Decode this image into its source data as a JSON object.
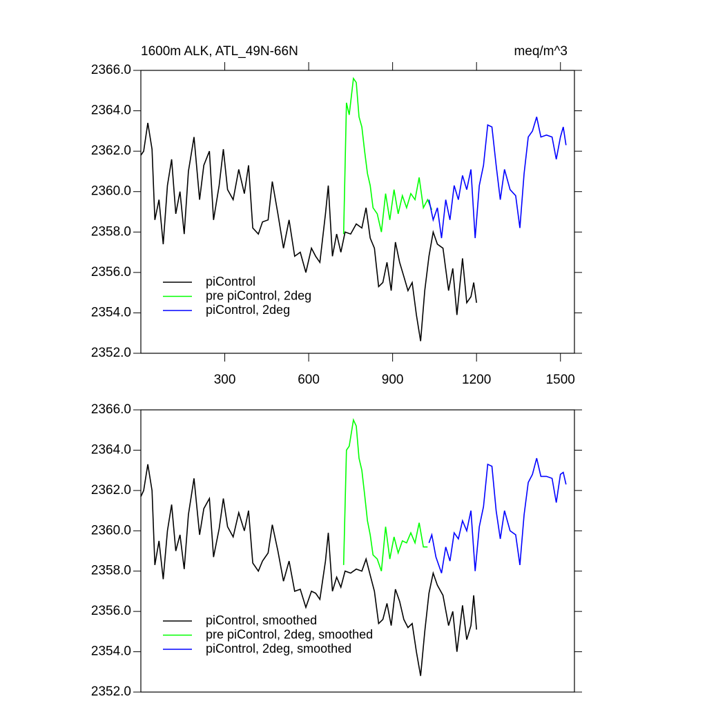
{
  "chart_data": [
    {
      "type": "line",
      "title": "1600m ALK, ATL_49N-66N",
      "units": "meq/m^3",
      "xlim": [
        0,
        1550
      ],
      "xticks": [
        300,
        600,
        900,
        1200,
        1500
      ],
      "ylim": [
        2352,
        2366
      ],
      "yticks": [
        {
          "value": 2352,
          "label": "2352.0"
        },
        {
          "value": 2354,
          "label": "2354.0"
        },
        {
          "value": 2356,
          "label": "2356.0"
        },
        {
          "value": 2358,
          "label": "2358.0"
        },
        {
          "value": 2360,
          "label": "2360.0"
        },
        {
          "value": 2362,
          "label": "2362.0"
        },
        {
          "value": 2364,
          "label": "2364.0"
        },
        {
          "value": 2366,
          "label": "2366.0"
        }
      ],
      "legend": "lower left",
      "series": [
        {
          "name": "piControl",
          "color": "#000000",
          "x": [
            0,
            10,
            25,
            40,
            50,
            65,
            80,
            95,
            110,
            125,
            140,
            155,
            170,
            190,
            210,
            225,
            245,
            260,
            280,
            295,
            310,
            330,
            350,
            370,
            385,
            400,
            420,
            435,
            455,
            470,
            490,
            510,
            530,
            550,
            570,
            590,
            610,
            625,
            640,
            660,
            670,
            685,
            700,
            715,
            730,
            750,
            770,
            790,
            805,
            820,
            835,
            850,
            865,
            880,
            895,
            910,
            925,
            940,
            955,
            970,
            985,
            1000,
            1015,
            1030,
            1045,
            1060,
            1080,
            1100,
            1115,
            1130,
            1150,
            1165,
            1180,
            1190,
            1200
          ],
          "values": [
            2361.8,
            2362.0,
            2363.4,
            2362.1,
            2358.6,
            2359.6,
            2357.4,
            2360.3,
            2361.6,
            2358.9,
            2360.0,
            2357.9,
            2361.0,
            2362.7,
            2359.6,
            2361.3,
            2362.0,
            2358.6,
            2360.3,
            2362.1,
            2360.1,
            2359.6,
            2361.1,
            2359.9,
            2361.3,
            2358.2,
            2357.9,
            2358.5,
            2358.6,
            2360.5,
            2358.9,
            2357.2,
            2358.6,
            2356.8,
            2357.0,
            2356.0,
            2357.2,
            2356.8,
            2356.5,
            2358.9,
            2360.3,
            2356.8,
            2357.9,
            2357.0,
            2358.0,
            2357.9,
            2358.4,
            2358.2,
            2359.2,
            2357.7,
            2357.2,
            2355.3,
            2355.5,
            2356.5,
            2355.1,
            2357.5,
            2356.5,
            2355.8,
            2355.1,
            2355.5,
            2353.9,
            2352.6,
            2355.1,
            2356.8,
            2358.0,
            2357.4,
            2357.2,
            2355.1,
            2356.2,
            2353.9,
            2356.7,
            2354.5,
            2354.8,
            2355.5,
            2354.5
          ]
        },
        {
          "name": "pre piControl, 2deg",
          "color": "#00ff00",
          "x": [
            725,
            735,
            745,
            760,
            770,
            780,
            790,
            800,
            810,
            820,
            830,
            845,
            860,
            875,
            890,
            905,
            920,
            935,
            950,
            965,
            980,
            995,
            1010,
            1025,
            1040
          ],
          "values": [
            2357.9,
            2364.4,
            2363.8,
            2365.6,
            2365.4,
            2363.7,
            2363.2,
            2362.0,
            2360.9,
            2360.3,
            2359.2,
            2358.9,
            2358.0,
            2359.9,
            2358.6,
            2360.1,
            2358.9,
            2359.8,
            2359.2,
            2359.9,
            2359.6,
            2360.7,
            2359.2,
            2359.6,
            2359.1
          ]
        },
        {
          "name": "piControl, 2deg",
          "color": "#0000ff",
          "x": [
            1030,
            1045,
            1060,
            1075,
            1090,
            1105,
            1120,
            1135,
            1150,
            1165,
            1180,
            1195,
            1210,
            1225,
            1240,
            1255,
            1270,
            1285,
            1300,
            1320,
            1340,
            1355,
            1370,
            1385,
            1400,
            1415,
            1430,
            1450,
            1470,
            1485,
            1500,
            1510,
            1520
          ],
          "values": [
            2359.6,
            2358.6,
            2359.2,
            2357.7,
            2359.6,
            2358.6,
            2360.3,
            2359.6,
            2360.8,
            2360.1,
            2361.1,
            2357.7,
            2360.3,
            2361.3,
            2363.3,
            2363.2,
            2361.3,
            2359.6,
            2361.1,
            2360.1,
            2359.8,
            2358.2,
            2360.9,
            2362.7,
            2363.0,
            2363.7,
            2362.7,
            2362.8,
            2362.7,
            2361.6,
            2362.7,
            2363.2,
            2362.3
          ]
        }
      ]
    },
    {
      "type": "line",
      "xlim": [
        0,
        1550
      ],
      "ylim": [
        2352,
        2366
      ],
      "yticks": [
        {
          "value": 2352,
          "label": "2352.0"
        },
        {
          "value": 2354,
          "label": "2354.0"
        },
        {
          "value": 2356,
          "label": "2356.0"
        },
        {
          "value": 2358,
          "label": "2358.0"
        },
        {
          "value": 2360,
          "label": "2360.0"
        },
        {
          "value": 2362,
          "label": "2362.0"
        },
        {
          "value": 2364,
          "label": "2364.0"
        },
        {
          "value": 2366,
          "label": "2366.0"
        }
      ],
      "legend": "lower left",
      "series": [
        {
          "name": "piControl, smoothed",
          "color": "#000000",
          "x": [
            0,
            10,
            25,
            40,
            50,
            65,
            80,
            95,
            110,
            125,
            140,
            155,
            170,
            190,
            210,
            225,
            245,
            260,
            280,
            295,
            310,
            330,
            350,
            370,
            385,
            400,
            420,
            435,
            455,
            470,
            490,
            510,
            530,
            550,
            570,
            590,
            610,
            625,
            640,
            660,
            670,
            685,
            700,
            715,
            730,
            750,
            770,
            790,
            805,
            820,
            835,
            850,
            865,
            880,
            895,
            910,
            925,
            940,
            955,
            970,
            985,
            1000,
            1015,
            1030,
            1045,
            1060,
            1080,
            1100,
            1115,
            1130,
            1150,
            1165,
            1180,
            1190,
            1200
          ],
          "values": [
            2361.7,
            2362.0,
            2363.3,
            2362.0,
            2358.3,
            2359.5,
            2357.6,
            2360.0,
            2361.3,
            2359.0,
            2359.8,
            2358.1,
            2360.8,
            2362.6,
            2359.8,
            2361.1,
            2361.6,
            2358.7,
            2360.1,
            2361.6,
            2360.2,
            2359.7,
            2360.9,
            2360.0,
            2361.0,
            2358.4,
            2358.0,
            2358.5,
            2358.9,
            2360.3,
            2359.0,
            2357.5,
            2358.5,
            2357.0,
            2357.1,
            2356.2,
            2357.0,
            2356.9,
            2356.6,
            2358.5,
            2359.9,
            2357.0,
            2357.7,
            2357.2,
            2358.0,
            2357.9,
            2358.1,
            2358.0,
            2358.6,
            2357.8,
            2357.0,
            2355.4,
            2355.6,
            2356.4,
            2355.3,
            2357.1,
            2356.5,
            2355.6,
            2355.2,
            2355.4,
            2354.0,
            2352.8,
            2355.0,
            2356.9,
            2357.9,
            2357.3,
            2356.8,
            2355.3,
            2356.0,
            2354.0,
            2356.3,
            2354.6,
            2355.3,
            2356.8,
            2355.1
          ]
        },
        {
          "name": "pre piControl, 2deg, smoothed",
          "color": "#00ff00",
          "x": [
            725,
            735,
            745,
            760,
            770,
            780,
            790,
            800,
            810,
            820,
            830,
            845,
            860,
            875,
            890,
            905,
            920,
            935,
            950,
            965,
            980,
            995,
            1010,
            1025
          ],
          "values": [
            2358.3,
            2364.0,
            2364.2,
            2365.5,
            2365.2,
            2363.6,
            2363.0,
            2361.8,
            2360.5,
            2359.8,
            2358.8,
            2358.6,
            2358.0,
            2360.2,
            2358.6,
            2359.7,
            2358.9,
            2359.5,
            2359.4,
            2359.9,
            2359.4,
            2360.4,
            2359.2,
            2359.2
          ]
        },
        {
          "name": "piControl, 2deg, smoothed",
          "color": "#0000ff",
          "x": [
            1030,
            1040,
            1055,
            1075,
            1090,
            1105,
            1120,
            1135,
            1150,
            1165,
            1180,
            1195,
            1210,
            1225,
            1240,
            1255,
            1270,
            1285,
            1300,
            1320,
            1340,
            1355,
            1370,
            1385,
            1400,
            1415,
            1430,
            1450,
            1470,
            1485,
            1500,
            1510,
            1520
          ],
          "values": [
            2359.4,
            2359.8,
            2358.7,
            2357.9,
            2359.2,
            2358.5,
            2359.9,
            2359.6,
            2360.5,
            2360.0,
            2361.0,
            2358.0,
            2360.2,
            2361.2,
            2363.3,
            2363.2,
            2361.0,
            2359.6,
            2361.0,
            2360.0,
            2359.8,
            2358.3,
            2360.8,
            2362.4,
            2362.8,
            2363.6,
            2362.7,
            2362.7,
            2362.6,
            2361.4,
            2362.8,
            2362.9,
            2362.3
          ]
        }
      ]
    }
  ]
}
